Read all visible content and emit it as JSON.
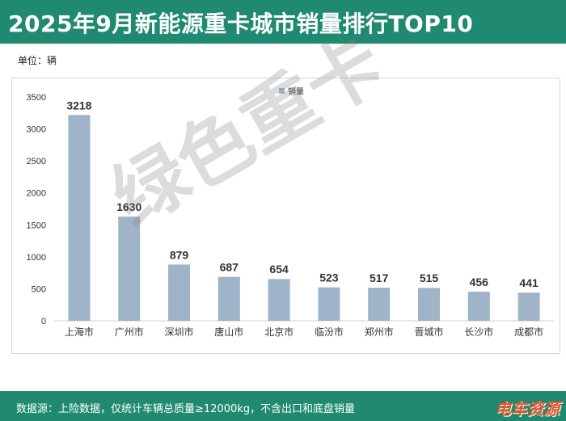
{
  "header": {
    "title": "2025年9月新能源重卡城市销量排行TOP10"
  },
  "unit_label": "单位：辆",
  "footer": {
    "note": "数据源：上险数据，仅统计车辆总质量≥12000kg，不含出口和底盘销量",
    "logo_text": "电车资源"
  },
  "watermark": "绿色重卡",
  "colors": {
    "header_bg": "#1f8a70",
    "bar": "#9fb4c9",
    "logo": "#e4572e"
  },
  "chart_data": {
    "type": "bar",
    "categories": [
      "上海市",
      "广州市",
      "深圳市",
      "唐山市",
      "北京市",
      "临汾市",
      "郑州市",
      "晋城市",
      "长沙市",
      "成都市"
    ],
    "series": [
      {
        "name": "销量",
        "values": [
          3218,
          1630,
          879,
          687,
          654,
          523,
          517,
          515,
          456,
          441
        ]
      }
    ],
    "ylim": [
      0,
      3500
    ],
    "yticks": [
      0,
      500,
      1000,
      1500,
      2000,
      2500,
      3000,
      3500
    ],
    "legend_position": "top",
    "grid": false,
    "data_labels": true
  }
}
